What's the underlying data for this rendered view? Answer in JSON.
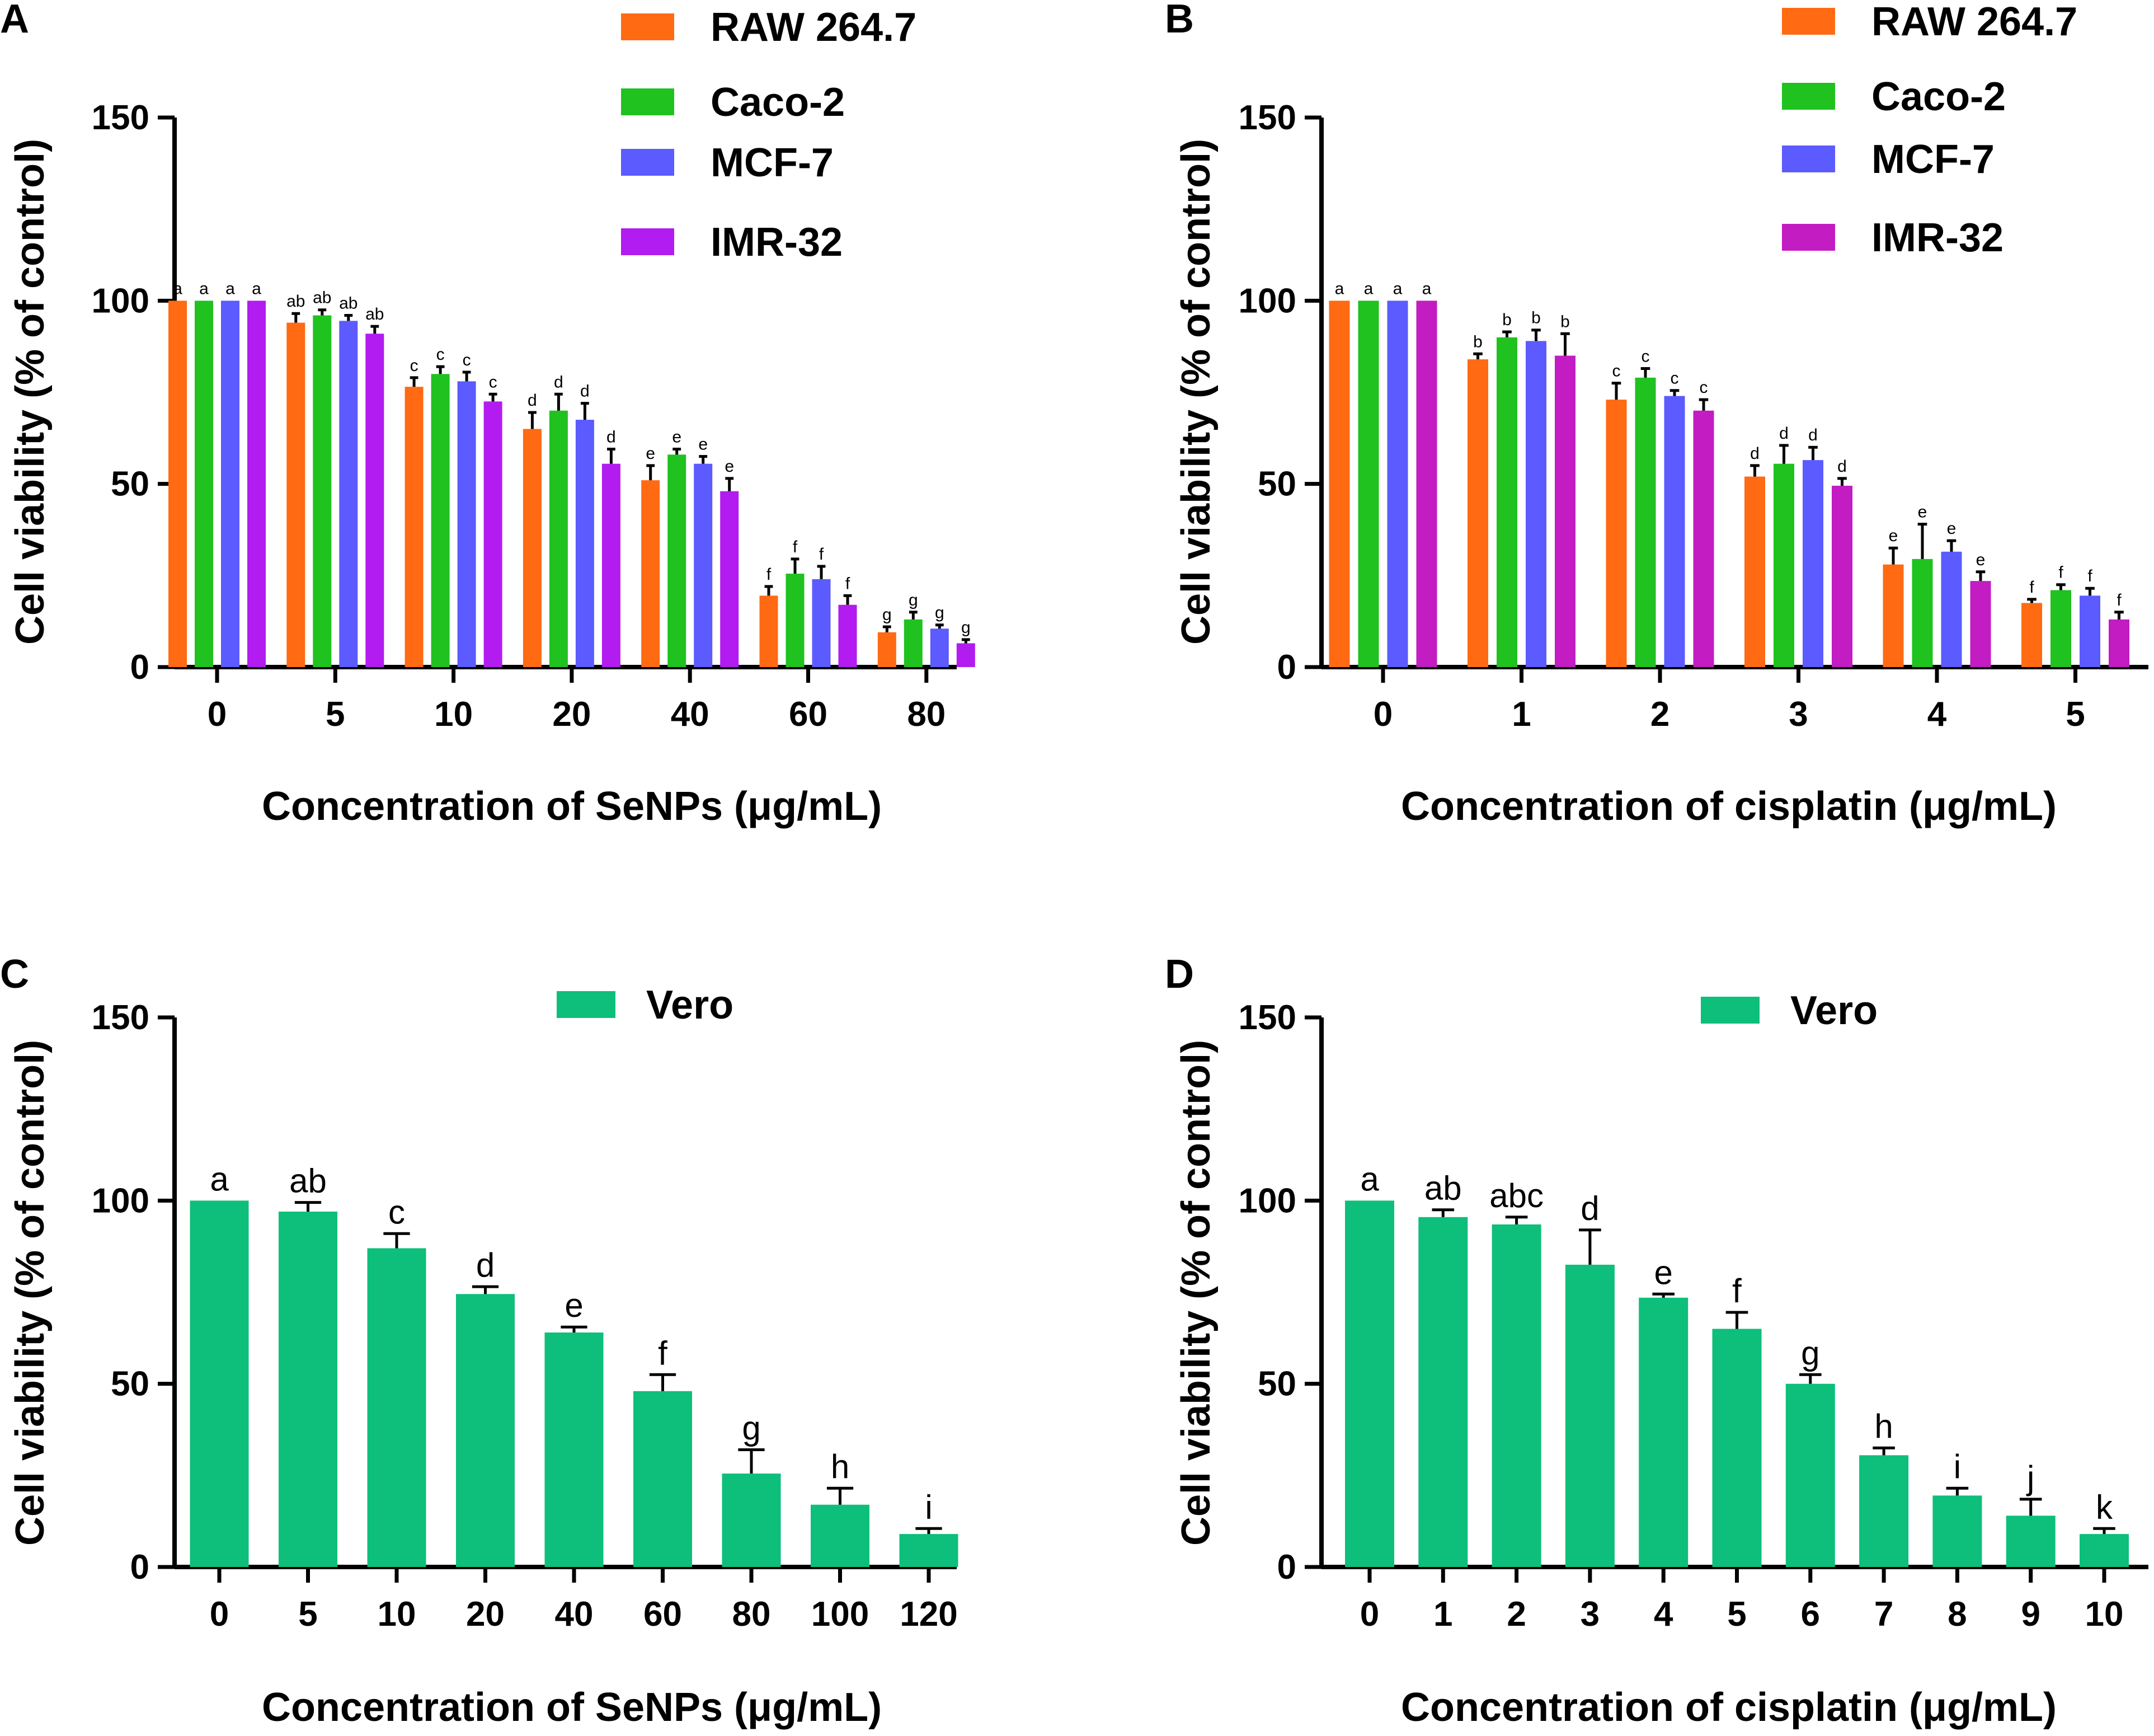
{
  "chart_data": [
    {
      "panel": "A",
      "type": "bar",
      "title": "",
      "xlabel": "Concentration of SeNPs (μg/mL)",
      "ylabel": "Cell viability (% of control)",
      "ylim": [
        0,
        150
      ],
      "yticks": [
        "0",
        "50",
        "100",
        "150"
      ],
      "categories": [
        "0",
        "5",
        "10",
        "20",
        "40",
        "60",
        "80"
      ],
      "legend_position": "top-right",
      "series": [
        {
          "name": "RAW 264.7",
          "color": "#FF6A13",
          "values": [
            100,
            94,
            76.5,
            65,
            51,
            19.5,
            9.5
          ],
          "errors": [
            0,
            2.5,
            2.5,
            4.5,
            4,
            2.5,
            1.5
          ],
          "labels": [
            "a",
            "ab",
            "c",
            "d",
            "e",
            "f",
            "g"
          ]
        },
        {
          "name": "Caco-2",
          "color": "#1FC21F",
          "values": [
            100,
            96,
            80,
            70,
            58,
            25.5,
            13
          ],
          "errors": [
            0,
            1.5,
            2,
            4.5,
            1.5,
            4,
            2
          ],
          "labels": [
            "a",
            "ab",
            "c",
            "d",
            "e",
            "f",
            "g"
          ]
        },
        {
          "name": "MCF-7",
          "color": "#5B5BFF",
          "values": [
            100,
            94.5,
            78,
            67.5,
            55.5,
            24,
            10.5
          ],
          "errors": [
            0,
            1.5,
            2.5,
            4.5,
            2,
            3.5,
            1
          ],
          "labels": [
            "a",
            "ab",
            "c",
            "d",
            "e",
            "f",
            "g"
          ]
        },
        {
          "name": "IMR-32",
          "color": "#B21CF0",
          "values": [
            100,
            91,
            72.5,
            55.5,
            48,
            17,
            6.5
          ],
          "errors": [
            0,
            2,
            2,
            4,
            3.5,
            2.5,
            1
          ],
          "labels": [
            "a",
            "ab",
            "c",
            "d",
            "e",
            "f",
            "g"
          ]
        }
      ]
    },
    {
      "panel": "B",
      "type": "bar",
      "title": "",
      "xlabel": "Concentration of cisplatin (μg/mL)",
      "ylabel": "Cell viability (% of control)",
      "ylim": [
        0,
        150
      ],
      "yticks": [
        "0",
        "50",
        "100",
        "150"
      ],
      "categories": [
        "0",
        "1",
        "2",
        "3",
        "4",
        "5"
      ],
      "legend_position": "top-right",
      "series": [
        {
          "name": "RAW 264.7",
          "color": "#FF6A13",
          "values": [
            100,
            84,
            73,
            52,
            28,
            17.5
          ],
          "errors": [
            0,
            1.5,
            4.5,
            3,
            4.5,
            1
          ],
          "labels": [
            "a",
            "b",
            "c",
            "d",
            "e",
            "f"
          ]
        },
        {
          "name": "Caco-2",
          "color": "#1FC21F",
          "values": [
            100,
            90,
            79,
            55.5,
            29.5,
            21
          ],
          "errors": [
            0,
            1.5,
            2.5,
            5,
            9.5,
            1.5
          ],
          "labels": [
            "a",
            "b",
            "c",
            "d",
            "e",
            "f"
          ]
        },
        {
          "name": "MCF-7",
          "color": "#5B5BFF",
          "values": [
            100,
            89,
            74,
            56.5,
            31.5,
            19.5
          ],
          "errors": [
            0,
            3,
            1.5,
            3.5,
            3,
            2
          ],
          "labels": [
            "a",
            "b",
            "c",
            "d",
            "e",
            "f"
          ]
        },
        {
          "name": "IMR-32",
          "color": "#C21CC2",
          "values": [
            100,
            85,
            70,
            49.5,
            23.5,
            13
          ],
          "errors": [
            0,
            6,
            3,
            2,
            2.5,
            2
          ],
          "labels": [
            "a",
            "b",
            "c",
            "d",
            "e",
            "f"
          ]
        }
      ]
    },
    {
      "panel": "C",
      "type": "bar",
      "title": "",
      "xlabel": "Concentration of SeNPs (μg/mL)",
      "ylabel": "Cell viability (% of control)",
      "ylim": [
        0,
        150
      ],
      "yticks": [
        "0",
        "50",
        "100",
        "150"
      ],
      "categories": [
        "0",
        "5",
        "10",
        "20",
        "40",
        "60",
        "80",
        "100",
        "120"
      ],
      "legend_position": "top-center",
      "series": [
        {
          "name": "Vero",
          "color": "#0DBF7A",
          "values": [
            100,
            97,
            87,
            74.5,
            64,
            48,
            25.5,
            17,
            9
          ],
          "errors": [
            0,
            2.5,
            4,
            2,
            1.5,
            4.5,
            6.5,
            4.5,
            1.5
          ],
          "labels": [
            "a",
            "ab",
            "c",
            "d",
            "e",
            "f",
            "g",
            "h",
            "i"
          ]
        }
      ]
    },
    {
      "panel": "D",
      "type": "bar",
      "title": "",
      "xlabel": "Concentration of cisplatin (μg/mL)",
      "ylabel": "Cell viability (% of control)",
      "ylim": [
        0,
        150
      ],
      "yticks": [
        "0",
        "50",
        "100",
        "150"
      ],
      "categories": [
        "0",
        "1",
        "2",
        "3",
        "4",
        "5",
        "6",
        "7",
        "8",
        "9",
        "10"
      ],
      "legend_position": "top-center",
      "series": [
        {
          "name": "Vero",
          "color": "#0DBF7A",
          "values": [
            100,
            95.5,
            93.5,
            82.5,
            73.5,
            65,
            50,
            30.5,
            19.5,
            14,
            9
          ],
          "errors": [
            0,
            2,
            2,
            9.5,
            1,
            4.5,
            2.5,
            2,
            2,
            4.5,
            1.5
          ],
          "labels": [
            "a",
            "ab",
            "abc",
            "d",
            "e",
            "f",
            "g",
            "h",
            "i",
            "j",
            "k"
          ]
        }
      ]
    }
  ]
}
